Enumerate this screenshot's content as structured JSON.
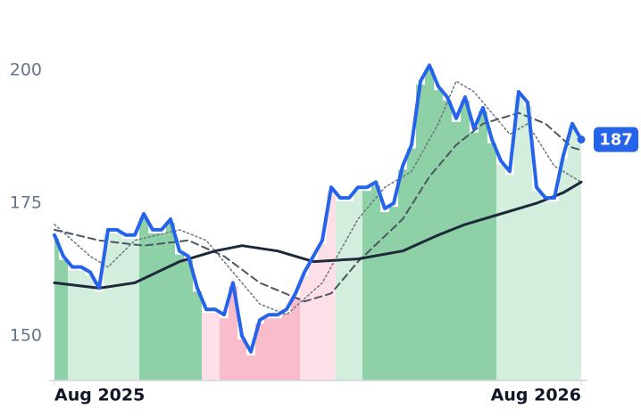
{
  "chart_data": {
    "type": "line",
    "x": [
      0,
      1,
      2,
      3,
      4,
      5,
      6,
      7,
      8,
      9,
      10,
      11,
      12,
      13,
      14,
      15,
      16,
      17,
      18,
      19,
      20,
      21,
      22,
      23,
      24,
      25,
      26,
      27,
      28,
      29,
      30,
      31,
      32,
      33,
      34,
      35,
      36,
      37,
      38,
      39,
      40,
      41,
      42,
      43,
      44,
      45,
      46,
      47,
      48,
      49,
      50,
      51,
      52,
      53,
      54,
      55,
      56,
      57,
      58,
      59
    ],
    "xlim": [
      0,
      59
    ],
    "xticks": [
      {
        "value": 0,
        "label": "Aug 2025"
      },
      {
        "value": 59,
        "label": "Aug 2026"
      }
    ],
    "ylim": [
      141.6,
      213.3
    ],
    "yticks": [
      150,
      175,
      200
    ],
    "series": [
      {
        "color": "#2563eb",
        "values": [
          169,
          165,
          163,
          163,
          162,
          159,
          170,
          170,
          169,
          169,
          173,
          170,
          170,
          172,
          166,
          165,
          159,
          155,
          155,
          154,
          160,
          150,
          147,
          153,
          154,
          154,
          155,
          158,
          162,
          165,
          168,
          178,
          176,
          176,
          178,
          178,
          179,
          174,
          175,
          182,
          186,
          198,
          201,
          197,
          195,
          191,
          195,
          189,
          193,
          187,
          183,
          181,
          196,
          194,
          178,
          176,
          176,
          184,
          190,
          187
        ],
        "value_labels": [
          null,
          null,
          null,
          null,
          null,
          null,
          null,
          null,
          null,
          null,
          null,
          null,
          null,
          null,
          null,
          null,
          null,
          null,
          null,
          null,
          null,
          null,
          null,
          null,
          null,
          null,
          null,
          null,
          null,
          null,
          null,
          null,
          null,
          null,
          null,
          null,
          null,
          null,
          null,
          null,
          null,
          null,
          null,
          null,
          null,
          null,
          null,
          null,
          null,
          null,
          null,
          null,
          null,
          null,
          null,
          null,
          null,
          null,
          null,
          "187"
        ],
        "bar_colors": [
          "#8fd1a6",
          "#8fd1a6",
          "#d3eedd",
          "#d3eedd",
          "#d3eedd",
          "#d3eedd",
          "#d3eedd",
          "#d3eedd",
          "#d3eedd",
          "#d3eedd",
          "#8fd1a6",
          "#8fd1a6",
          "#8fd1a6",
          "#8fd1a6",
          "#8fd1a6",
          "#8fd1a6",
          "#8fd1a6",
          "#fde0e7",
          "#fde0e7",
          "#f8bccb",
          "#f8bccb",
          "#f8bccb",
          "#f8bccb",
          "#f8bccb",
          "#f8bccb",
          "#f8bccb",
          "#f8bccb",
          "#f8bccb",
          "#fde0e7",
          "#fde0e7",
          "#fde0e7",
          "#fde0e7",
          "#d3eedd",
          "#d3eedd",
          "#d3eedd",
          "#8fd1a6",
          "#8fd1a6",
          "#8fd1a6",
          "#8fd1a6",
          "#8fd1a6",
          "#8fd1a6",
          "#8fd1a6",
          "#8fd1a6",
          "#8fd1a6",
          "#8fd1a6",
          "#8fd1a6",
          "#8fd1a6",
          "#8fd1a6",
          "#8fd1a6",
          "#8fd1a6",
          "#d3eedd",
          "#d3eedd",
          "#d3eedd",
          "#d3eedd",
          "#d3eedd",
          "#d3eedd",
          "#d3eedd",
          "#d3eedd",
          "#d3eedd",
          "#d3eedd"
        ]
      },
      {
        "color": "#1e293b",
        "style": "solid",
        "x": [
          0,
          5,
          9,
          14,
          18,
          21,
          25,
          29,
          34,
          39,
          43,
          46,
          50,
          54,
          57,
          59
        ],
        "values": [
          160,
          159,
          160,
          164,
          166,
          167,
          166,
          164,
          164.5,
          166,
          169,
          171,
          173,
          175,
          177,
          179
        ]
      },
      {
        "color": "#4b5563",
        "style": "dashed",
        "x": [
          0,
          5,
          10,
          15,
          19,
          23,
          28,
          31,
          34,
          39,
          42,
          45,
          48,
          52,
          55,
          58,
          59
        ],
        "values": [
          170,
          168,
          167,
          168,
          165,
          160,
          156.5,
          158,
          164,
          172,
          180,
          186,
          190,
          192,
          190,
          185.5,
          185
        ]
      },
      {
        "color": "#6b7280",
        "style": "dotted",
        "x": [
          0,
          4,
          6,
          9,
          14,
          17,
          20,
          23,
          26,
          30,
          34,
          37,
          40,
          43,
          45,
          47,
          51,
          53,
          56,
          59
        ],
        "values": [
          171,
          165,
          163,
          168,
          170,
          168,
          162,
          156,
          154,
          160,
          172,
          178,
          181,
          190,
          198,
          196,
          188,
          190,
          182,
          179
        ]
      }
    ]
  }
}
